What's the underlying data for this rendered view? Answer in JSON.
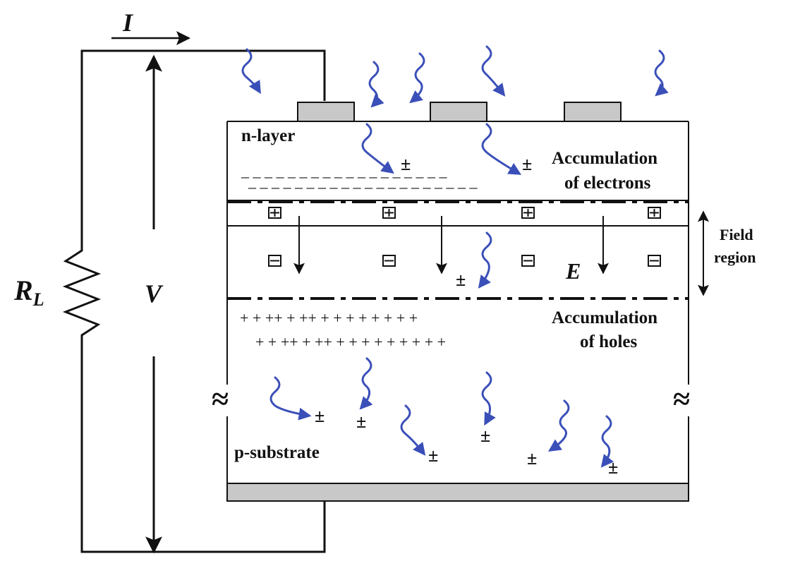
{
  "colors": {
    "background": "#ffffff",
    "line": "#111111",
    "contact_fill": "#c8c8c8",
    "photon": "#3a4fb8"
  },
  "labels": {
    "current": "I",
    "voltage": "V",
    "resistor": "R",
    "resistor_subscript": "L",
    "n_layer": "n-layer",
    "p_substrate": "p-substrate",
    "electric_field": "E",
    "electron_accumulation_1": "Accumulation",
    "electron_accumulation_2": "of electrons",
    "hole_accumulation_1": "Accumulation",
    "hole_accumulation_2": "of holes",
    "field_region_1": "Field",
    "field_region_2": "region"
  },
  "symbols": {
    "pair": "±",
    "break": "≈",
    "electron_row_1": "– –  – –    – – – –   – – – – – – – – – –",
    "electron_row_2": "– – – –   – – – – – – – – – – – – – – – –",
    "hole_row_1": "+  +  ++   + ++  +   + +  +  + +  + +",
    "hole_row_2": "+  +  ++   + ++  +   + +  +  +  +  + + +",
    "positive_ion": "⊞",
    "negative_ion": "⊟"
  }
}
